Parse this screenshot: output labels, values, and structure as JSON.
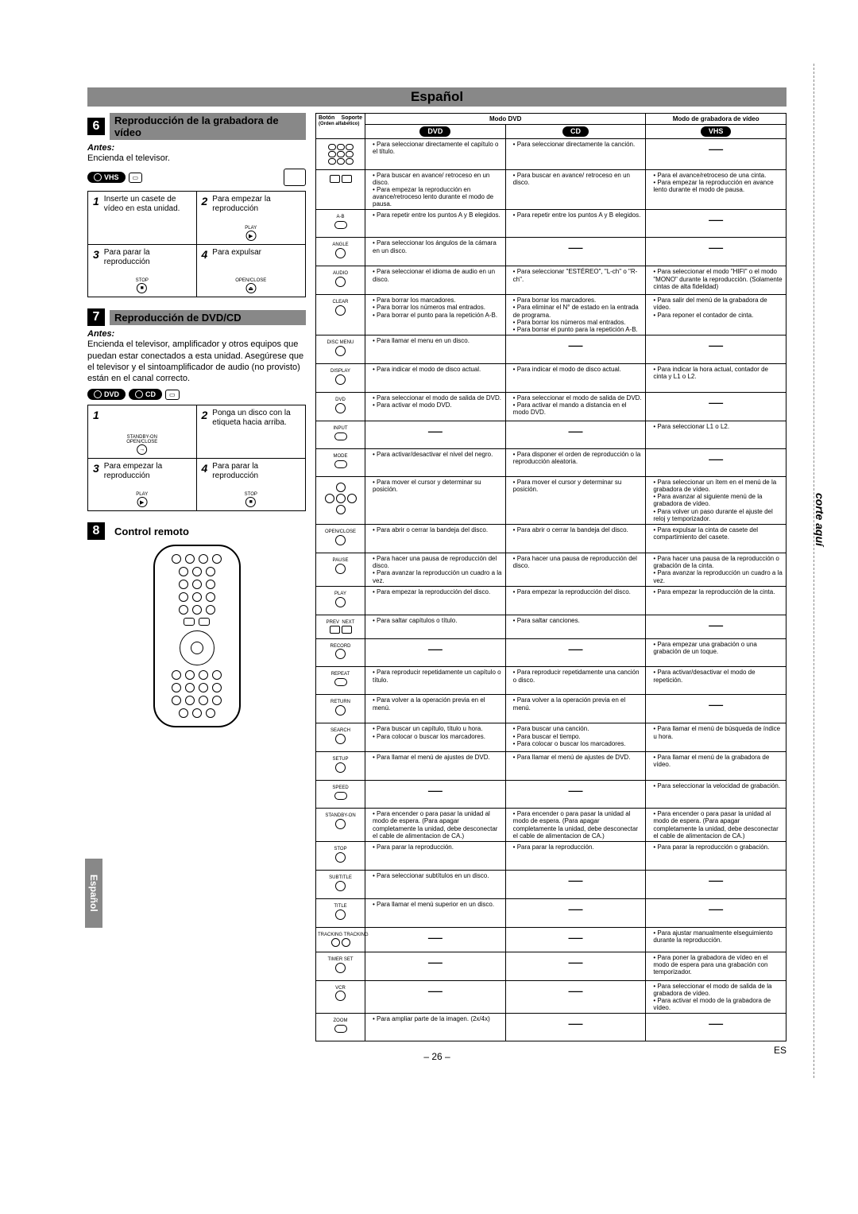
{
  "lang_title": "Español",
  "section6": {
    "num": "6",
    "title": "Reproducción de la grabadora de vídeo",
    "antes": "Antes:",
    "antes_text": "Encienda el televisor.",
    "steps": [
      {
        "n": "1",
        "t": "Inserte un casete de vídeo en esta unidad."
      },
      {
        "n": "2",
        "t": "Para empezar la reproducción",
        "icon": "▶",
        "lbl": "PLAY"
      },
      {
        "n": "3",
        "t": "Para parar la reproducción",
        "icon": "■",
        "lbl": "STOP"
      },
      {
        "n": "4",
        "t": "Para expulsar",
        "icon": "⏏",
        "lbl": "OPEN/CLOSE"
      }
    ]
  },
  "section7": {
    "num": "7",
    "title": "Reproducción de DVD/CD",
    "antes": "Antes:",
    "antes_text": "Encienda el televisor, amplificador y otros equipos que puedan estar conectados a esta unidad. Asegúrese que el televisor y el sintoamplificador de audio (no provisto) están en el canal correcto.",
    "steps": [
      {
        "n": "1",
        "t": "",
        "icon": "→",
        "lbl": "STANDBY-ON   OPEN/CLOSE"
      },
      {
        "n": "2",
        "t": "Ponga un disco con la etiqueta hacia arriba."
      },
      {
        "n": "3",
        "t": "Para empezar la reproducción",
        "icon": "▶",
        "lbl": "PLAY"
      },
      {
        "n": "4",
        "t": "Para parar la reproducción",
        "icon": "■",
        "lbl": "STOP"
      }
    ]
  },
  "section8": {
    "num": "8",
    "title": "Control remoto"
  },
  "table": {
    "hdr_button": "Botón",
    "hdr_support": "Soporte",
    "hdr_order": "(Orden alfabético)",
    "hdr_dvdmode": "Modo DVD",
    "hdr_vcrmode": "Modo de grabadora de vídeo",
    "dvd": "DVD",
    "cd": "CD",
    "vhs": "VHS",
    "rows": [
      {
        "b": "grid",
        "dvd": [
          "Para seleccionar directamente el capítulo o el título."
        ],
        "cd": [
          "Para seleccionar directamente la canción."
        ],
        "vhs": "—"
      },
      {
        "b": "arrows",
        "dvd": [
          "Para buscar en avance/ retroceso en un disco.",
          "Para empezar la reproducción en avance/retroceso lento durante el modo de pausa."
        ],
        "cd": [
          "Para buscar en avance/ retroceso en un disco."
        ],
        "vhs": [
          "Para el avance/retroceso de una cinta.",
          "Para empezar la reproducción en avance lento durante el modo de pausa."
        ]
      },
      {
        "b": "A-B",
        "dvd": [
          "Para repetir entre los puntos A y B elegidos."
        ],
        "cd": [
          "Para repetir entre los puntos A y B elegidos."
        ],
        "vhs": "—"
      },
      {
        "b": "ANGLE",
        "dvd": [
          "Para seleccionar los ángulos de la cámara en un disco."
        ],
        "cd": "—",
        "vhs": "—"
      },
      {
        "b": "AUDIO",
        "dvd": [
          "Para seleccionar el idioma de audio en un disco."
        ],
        "cd": [
          "Para seleccionar \"ESTÉREO\", \"L-ch\" o \"R-ch\"."
        ],
        "vhs": [
          "Para seleccionar el modo \"HIFI\" o el modo \"MONO\" durante la reproducción. (Solamente cintas de alta fidelidad)"
        ]
      },
      {
        "b": "CLEAR",
        "dvd": [
          "Para borrar los marcadores.",
          "Para borrar los números mal entrados.",
          "Para borrar el punto para la repetición A-B."
        ],
        "cd": [
          "Para borrar los marcadores.",
          "Para eliminar el N° de estado en la entrada de programa.",
          "Para borrar los números mal entrados.",
          "Para borrar el punto para la repetición A-B."
        ],
        "vhs": [
          "Para salir del menú de la grabadora de vídeo.",
          "Para reponer el contador de cinta."
        ]
      },
      {
        "b": "DISC MENU",
        "dvd": [
          "Para llamar el menu en un disco."
        ],
        "cd": "—",
        "vhs": "—"
      },
      {
        "b": "DISPLAY",
        "dvd": [
          "Para indicar el modo de disco actual."
        ],
        "cd": [
          "Para indicar el modo de disco actual."
        ],
        "vhs": [
          "Para indicar la hora actual, contador de cinta y L1 o L2."
        ]
      },
      {
        "b": "DVD",
        "dvd": [
          "Para seleccionar el modo de salida de DVD.",
          "Para activar el modo DVD."
        ],
        "cd": [
          "Para seleccionar el modo de salida de DVD.",
          "Para activar el mando a distancia en el modo DVD."
        ],
        "vhs": "—"
      },
      {
        "b": "INPUT",
        "dvd": "—",
        "cd": "—",
        "vhs": [
          "Para  seleccionar L1 o L2."
        ]
      },
      {
        "b": "MODE",
        "dvd": [
          "Para activar/desactivar el nivel del negro."
        ],
        "cd": [
          "Para disponer el orden de reproducción o la reproducción aleatoria."
        ],
        "vhs": "—"
      },
      {
        "b": "dpad",
        "dvd": [
          "Para mover el cursor y determinar su posición."
        ],
        "cd": [
          "Para mover el cursor y determinar su posición."
        ],
        "vhs": [
          "Para seleccionar un ítem en el menú de la grabadora de vídeo.",
          "Para avanzar al siguiente menú de la grabadora de vídeo.",
          "Para volver un paso durante el ajuste del reloj y temporizador."
        ]
      },
      {
        "b": "OPEN/CLOSE",
        "dvd": [
          "Para abrir o cerrar la bandeja del disco."
        ],
        "cd": [
          "Para abrir o cerrar la bandeja del disco."
        ],
        "vhs": [
          "Para expulsar la cinta de casete del compartimiento del casete."
        ]
      },
      {
        "b": "PAUSE",
        "dvd": [
          "Para hacer una pausa de reproducción del disco.",
          "Para avanzar la reproducción un cuadro a la vez."
        ],
        "cd": [
          "Para hacer una pausa de reproducción del disco."
        ],
        "vhs": [
          "Para hacer una pausa de la reproducción o grabación de la cinta.",
          "Para avanzar la reproducción un cuadro a la vez."
        ]
      },
      {
        "b": "PLAY",
        "dvd": [
          "Para empezar la reproducción del disco."
        ],
        "cd": [
          "Para empezar la reproducción del disco."
        ],
        "vhs": [
          "Para empezar la reproducción de la cinta."
        ]
      },
      {
        "b": "PREV NEXT",
        "dvd": [
          "Para saltar capítulos o título."
        ],
        "cd": [
          "Para saltar canciones."
        ],
        "vhs": "—"
      },
      {
        "b": "RECORD",
        "dvd": "—",
        "cd": "—",
        "vhs": [
          "Para empezar una grabación  o una grabación de un toque."
        ]
      },
      {
        "b": "REPEAT",
        "dvd": [
          "Para reproducir repetidamente un capítulo o título."
        ],
        "cd": [
          "Para reproducir repetidamente una canción o disco."
        ],
        "vhs": [
          "Para activar/desactivar el modo de repetición."
        ]
      },
      {
        "b": "RETURN",
        "dvd": [
          "Para volver a la operación previa en el menú."
        ],
        "cd": [
          "Para volver a la operación previa en el menú."
        ],
        "vhs": "—"
      },
      {
        "b": "SEARCH",
        "dvd": [
          "Para buscar un capítulo, título u hora.",
          "Para colocar o buscar los marcadores."
        ],
        "cd": [
          "Para buscar una canción.",
          "Para buscar el tiempo.",
          "Para colocar o buscar los marcadores."
        ],
        "vhs": [
          "Para llamar el menú de búsqueda de índice u hora."
        ]
      },
      {
        "b": "SETUP",
        "dvd": [
          "Para llamar el menú de ajustes de DVD."
        ],
        "cd": [
          "Para llamar el menú de ajustes de DVD."
        ],
        "vhs": [
          "Para llamar el menú de la grabadora de vídeo."
        ]
      },
      {
        "b": "SPEED",
        "dvd": "—",
        "cd": "—",
        "vhs": [
          "Para seleccionar la velocidad de grabación."
        ]
      },
      {
        "b": "STANDBY-ON",
        "dvd": [
          "Para encender o para pasar la unidad al modo de espera. (Para apagar completamente la unidad, debe desconectar el cable de alimentacion de CA.)"
        ],
        "cd": [
          "Para encender o para pasar la unidad al modo de espera. (Para apagar completamente la unidad, debe desconectar el cable de alimentacion de CA.)"
        ],
        "vhs": [
          "Para encender o para pasar la unidad al modo de espera. (Para apagar completamente la unidad, debe desconectar el cable de alimentacion de CA.)"
        ]
      },
      {
        "b": "STOP",
        "dvd": [
          "Para parar la reproducción."
        ],
        "cd": [
          "Para parar la reproducción."
        ],
        "vhs": [
          "Para parar la reproducción o grabación."
        ]
      },
      {
        "b": "SUBTITLE",
        "dvd": [
          "Para seleccionar subtítulos en un disco."
        ],
        "cd": "—",
        "vhs": "—"
      },
      {
        "b": "TITLE",
        "dvd": [
          "Para llamar el menú superior en un disco."
        ],
        "cd": "—",
        "vhs": "—"
      },
      {
        "b": "TRACKING",
        "dvd": "—",
        "cd": "—",
        "vhs": [
          "Para ajustar manualmente elseguimiento durante la reproducción."
        ]
      },
      {
        "b": "TIMER SET",
        "dvd": "—",
        "cd": "—",
        "vhs": [
          "Para poner la grabadora de vídeo en el modo de espera para una grabación con temporizador."
        ]
      },
      {
        "b": "VCR",
        "dvd": "—",
        "cd": "—",
        "vhs": [
          "Para seleccionar el modo de salida de la grabadora de vídeo.",
          "Para activar el modo de la grabadora de vídeo."
        ]
      },
      {
        "b": "ZOOM",
        "dvd": [
          "Para ampliar parte de la imagen. (2x/4x)"
        ],
        "cd": "—",
        "vhs": "—"
      }
    ]
  },
  "side_tab": "Español",
  "corte": "corte aquí",
  "page_num": "– 26 –",
  "es": "ES"
}
